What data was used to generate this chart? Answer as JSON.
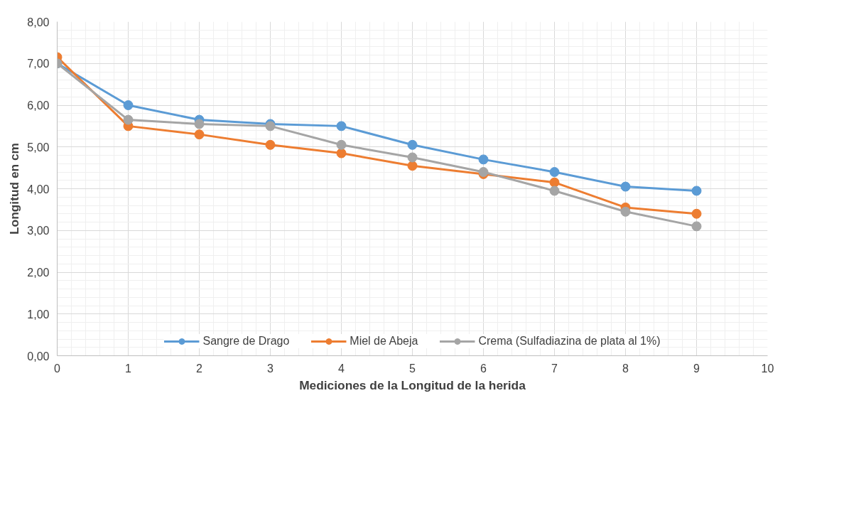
{
  "chart_data": {
    "type": "line",
    "xlabel": "Mediciones de la Longitud de la herida",
    "ylabel": "Longitud en cm",
    "x": [
      0,
      1,
      2,
      3,
      4,
      5,
      6,
      7,
      8,
      9
    ],
    "series": [
      {
        "name": "Sangre de Drago",
        "color": "#5b9bd5",
        "values": [
          7.0,
          6.0,
          5.65,
          5.55,
          5.5,
          5.05,
          4.7,
          4.4,
          4.05,
          3.95
        ]
      },
      {
        "name": "Miel de Abeja",
        "color": "#ed7d31",
        "values": [
          7.15,
          5.5,
          5.3,
          5.05,
          4.85,
          4.55,
          4.35,
          4.15,
          3.55,
          3.4
        ]
      },
      {
        "name": "Crema (Sulfadiazina de plata al 1%)",
        "color": "#a5a5a5",
        "values": [
          7.0,
          5.65,
          5.55,
          5.5,
          5.05,
          4.75,
          4.4,
          3.95,
          3.45,
          3.1
        ]
      }
    ],
    "xlim": [
      0,
      10
    ],
    "xticks": [
      0,
      1,
      2,
      3,
      4,
      5,
      6,
      7,
      8,
      9,
      10
    ],
    "ylim": [
      0,
      8
    ],
    "yticks": [
      {
        "value": 0,
        "label": "0,00"
      },
      {
        "value": 1,
        "label": "1,00"
      },
      {
        "value": 2,
        "label": "2,00"
      },
      {
        "value": 3,
        "label": "3,00"
      },
      {
        "value": 4,
        "label": "4,00"
      },
      {
        "value": 5,
        "label": "5,00"
      },
      {
        "value": 6,
        "label": "6,00"
      },
      {
        "value": 7,
        "label": "7,00"
      },
      {
        "value": 8,
        "label": "8,00"
      }
    ],
    "grid": true,
    "legend": "bottom",
    "marker": "circle",
    "line_style": "solid"
  }
}
